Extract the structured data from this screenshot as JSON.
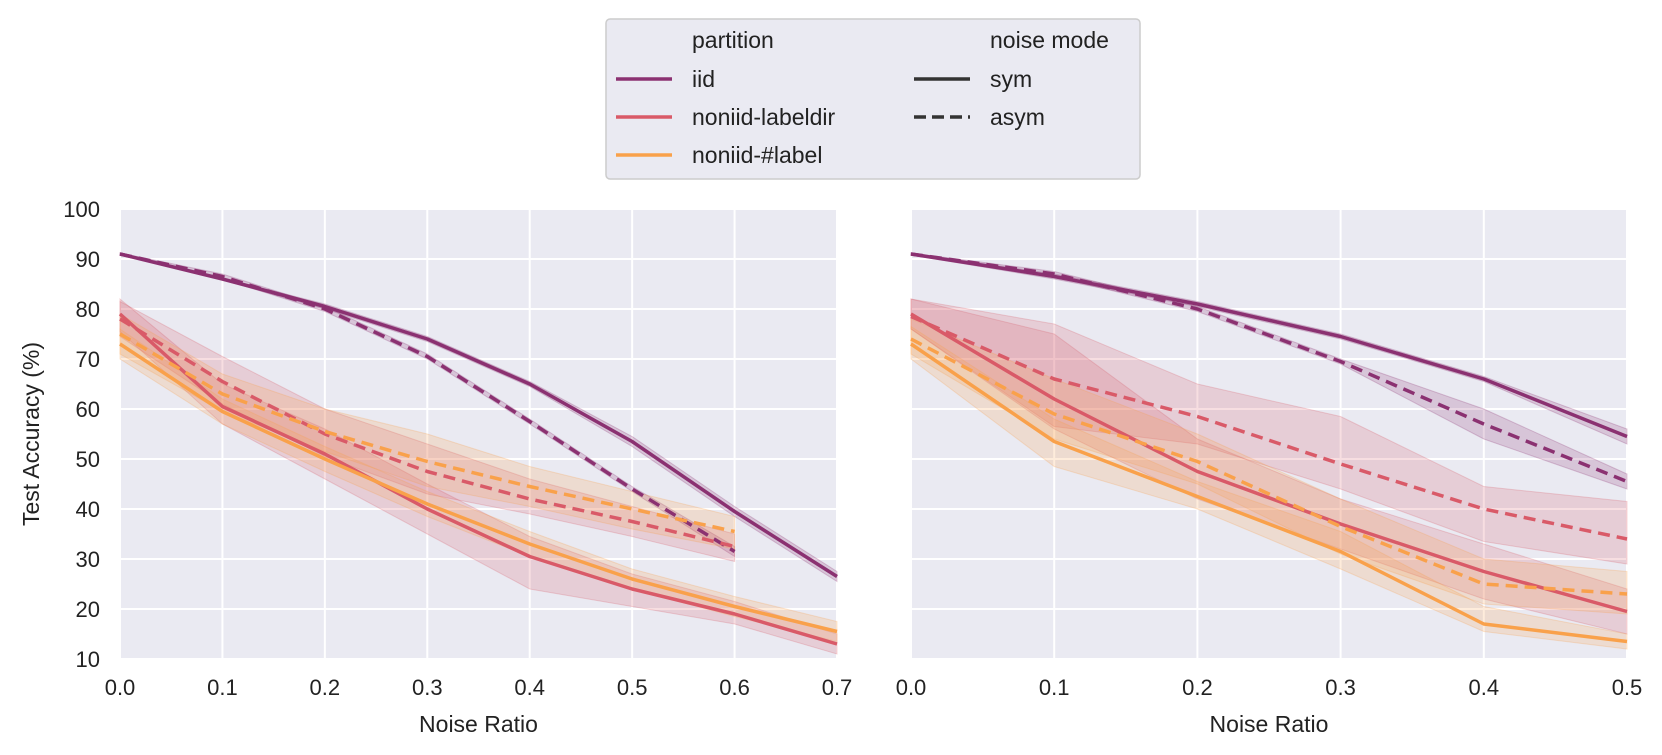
{
  "colors": {
    "iid": "#8b3171",
    "noniid-labeldir": "#d95a68",
    "noniid-#label": "#f9a14b",
    "panel_bg": "#eaeaf2",
    "grid": "#ffffff",
    "legend_style_line": "#333333"
  },
  "legend": {
    "partition_title": "partition",
    "partition_items": [
      "iid",
      "noniid-labeldir",
      "noniid-#label"
    ],
    "mode_title": "noise mode",
    "mode_items": [
      "sym",
      "asym"
    ]
  },
  "chart_data": [
    {
      "type": "line",
      "panel": "left",
      "xlabel": "Noise Ratio",
      "ylabel": "Test Accuracy (%)",
      "xlim": [
        0.0,
        0.7
      ],
      "ylim": [
        10,
        100
      ],
      "xticks": [
        0.0,
        0.1,
        0.2,
        0.3,
        0.4,
        0.5,
        0.6,
        0.7
      ],
      "xtick_labels": [
        "0.0",
        "0.1",
        "0.2",
        "0.3",
        "0.4",
        "0.5",
        "0.6",
        "0.7"
      ],
      "yticks": [
        10,
        20,
        30,
        40,
        50,
        60,
        70,
        80,
        90,
        100
      ],
      "ytick_labels": [
        "10",
        "20",
        "30",
        "40",
        "50",
        "60",
        "70",
        "80",
        "90",
        "100"
      ],
      "series": [
        {
          "partition": "iid",
          "mode": "sym",
          "x": [
            0.0,
            0.1,
            0.2,
            0.3,
            0.4,
            0.5,
            0.6,
            0.7
          ],
          "y": [
            91,
            86,
            80.5,
            74,
            65,
            53.5,
            39.5,
            26.5
          ],
          "lower": [
            90.8,
            85.8,
            80,
            73.5,
            64.5,
            52.5,
            38.5,
            25.5
          ],
          "upper": [
            91.2,
            86.2,
            81,
            74.5,
            65.5,
            54.5,
            40.5,
            27.5
          ]
        },
        {
          "partition": "iid",
          "mode": "asym",
          "x": [
            0.0,
            0.1,
            0.2,
            0.3,
            0.4,
            0.5,
            0.6
          ],
          "y": [
            91,
            86.5,
            80,
            70.5,
            57.5,
            44,
            31.5
          ],
          "lower": [
            90.8,
            86,
            79.5,
            70,
            57,
            43.5,
            30.5
          ],
          "upper": [
            91.2,
            87,
            80.5,
            71,
            58,
            44.5,
            32.5
          ]
        },
        {
          "partition": "noniid-labeldir",
          "mode": "sym",
          "x": [
            0.0,
            0.1,
            0.2,
            0.3,
            0.4,
            0.5,
            0.6,
            0.7
          ],
          "y": [
            79,
            60.5,
            51,
            40,
            30.5,
            24,
            19,
            13
          ],
          "lower": [
            75.5,
            57,
            46,
            35,
            24,
            20.5,
            17,
            11
          ],
          "upper": [
            82,
            65,
            56,
            45,
            34.5,
            27,
            21.5,
            15
          ]
        },
        {
          "partition": "noniid-labeldir",
          "mode": "asym",
          "x": [
            0.0,
            0.1,
            0.2,
            0.3,
            0.4,
            0.5,
            0.6
          ],
          "y": [
            78,
            65.5,
            55,
            47.5,
            42,
            37.5,
            32.5
          ],
          "lower": [
            74.5,
            61,
            50.5,
            43,
            39,
            34.5,
            29.5
          ],
          "upper": [
            81.5,
            70.5,
            60,
            53,
            46,
            40.5,
            35
          ]
        },
        {
          "partition": "noniid-#label",
          "mode": "sym",
          "x": [
            0.0,
            0.1,
            0.2,
            0.3,
            0.4,
            0.5,
            0.6,
            0.7
          ],
          "y": [
            73,
            59.5,
            50,
            41,
            33,
            26,
            20.5,
            15.5
          ],
          "lower": [
            70,
            57,
            47.5,
            38.5,
            30.5,
            24,
            18.5,
            13.5
          ],
          "upper": [
            76,
            62,
            52.5,
            43.5,
            35.5,
            28,
            22.5,
            17.5
          ]
        },
        {
          "partition": "noniid-#label",
          "mode": "asym",
          "x": [
            0.0,
            0.1,
            0.2,
            0.3,
            0.4,
            0.5,
            0.6
          ],
          "y": [
            75,
            63,
            55.5,
            49.5,
            44.5,
            40,
            35.5
          ],
          "lower": [
            71,
            59.5,
            51.5,
            44.5,
            40.5,
            36,
            32
          ],
          "upper": [
            79,
            67,
            60,
            55,
            48.5,
            43.5,
            38.5
          ]
        }
      ]
    },
    {
      "type": "line",
      "panel": "right",
      "xlabel": "Noise Ratio",
      "ylabel": "",
      "xlim": [
        0.0,
        0.5
      ],
      "ylim": [
        10,
        100
      ],
      "xticks": [
        0.0,
        0.1,
        0.2,
        0.3,
        0.4,
        0.5
      ],
      "xtick_labels": [
        "0.0",
        "0.1",
        "0.2",
        "0.3",
        "0.4",
        "0.5"
      ],
      "yticks": [
        10,
        20,
        30,
        40,
        50,
        60,
        70,
        80,
        90,
        100
      ],
      "ytick_labels": [],
      "series": [
        {
          "partition": "iid",
          "mode": "sym",
          "x": [
            0.0,
            0.1,
            0.2,
            0.3,
            0.4,
            0.5
          ],
          "y": [
            91,
            86.5,
            81,
            74.5,
            66,
            54.5
          ],
          "lower": [
            90.8,
            86,
            80.5,
            74,
            65.5,
            53
          ],
          "upper": [
            91.2,
            87,
            81.5,
            75,
            66.5,
            56
          ]
        },
        {
          "partition": "iid",
          "mode": "asym",
          "x": [
            0.0,
            0.1,
            0.2,
            0.3,
            0.4,
            0.5
          ],
          "y": [
            91,
            87,
            80,
            69.5,
            57,
            45.5
          ],
          "lower": [
            90.8,
            86.5,
            79.5,
            69,
            54,
            44
          ],
          "upper": [
            91.2,
            87.5,
            80.5,
            70,
            60,
            47
          ]
        },
        {
          "partition": "noniid-labeldir",
          "mode": "sym",
          "x": [
            0.0,
            0.1,
            0.2,
            0.3,
            0.4,
            0.5
          ],
          "y": [
            79,
            62,
            47.5,
            37,
            27.5,
            19.5
          ],
          "lower": [
            76,
            56,
            42,
            32,
            22,
            15
          ],
          "upper": [
            82,
            75,
            54,
            42,
            33,
            24
          ]
        },
        {
          "partition": "noniid-labeldir",
          "mode": "asym",
          "x": [
            0.0,
            0.1,
            0.2,
            0.3,
            0.4,
            0.5
          ],
          "y": [
            78.5,
            66,
            58.5,
            49,
            40,
            34
          ],
          "lower": [
            76,
            56.5,
            53,
            44,
            33.5,
            29
          ],
          "upper": [
            82,
            77,
            65,
            58.5,
            44.5,
            41.5
          ]
        },
        {
          "partition": "noniid-#label",
          "mode": "sym",
          "x": [
            0.0,
            0.1,
            0.2,
            0.3,
            0.4,
            0.5
          ],
          "y": [
            73,
            53.5,
            42.5,
            31.5,
            17,
            13.5
          ],
          "lower": [
            70,
            48.5,
            40,
            28,
            15.5,
            12
          ],
          "upper": [
            76.5,
            58,
            45.5,
            35.5,
            20.5,
            15
          ]
        },
        {
          "partition": "noniid-#label",
          "mode": "asym",
          "x": [
            0.0,
            0.1,
            0.2,
            0.3,
            0.4,
            0.5
          ],
          "y": [
            74,
            59,
            49.5,
            36.5,
            25,
            23
          ],
          "lower": [
            71,
            54,
            45,
            31,
            21,
            19
          ],
          "upper": [
            78,
            66,
            55,
            42,
            30,
            27.5
          ]
        }
      ]
    }
  ]
}
